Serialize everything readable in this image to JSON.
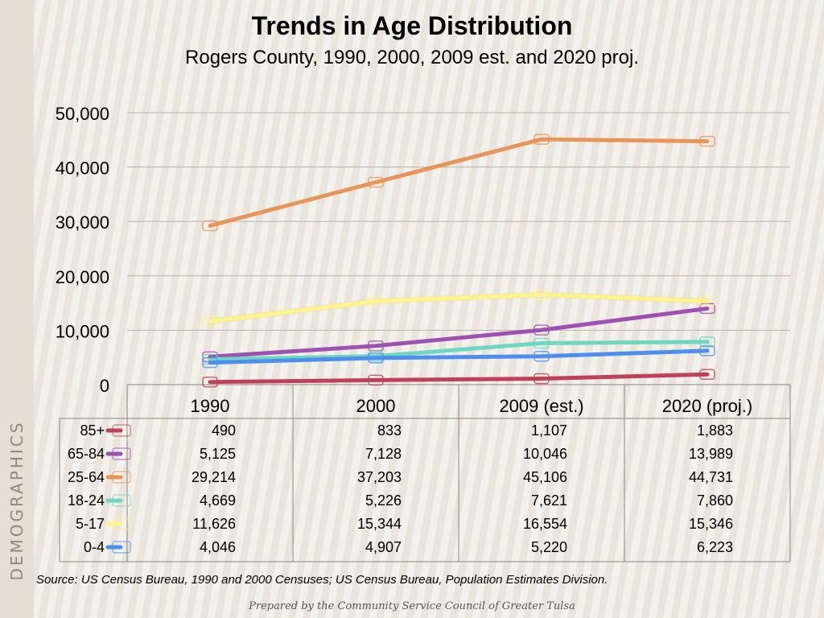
{
  "side_label": "DEMOGRAPHICS",
  "source": "Source:  US Census Bureau, 1990 and 2000 Censuses; US Census Bureau, Population Estimates Division.",
  "prepared": "Prepared by the Community Service Council of Greater Tulsa",
  "chart_data": {
    "type": "line",
    "title": "Trends in Age Distribution",
    "subtitle": "Rogers County, 1990, 2000, 2009 est. and 2020 proj.",
    "categories": [
      "1990",
      "2000",
      "2009 (est.)",
      "2020 (proj.)"
    ],
    "ylim": [
      0,
      50000
    ],
    "yticks": [
      "0",
      "10,000",
      "20,000",
      "30,000",
      "40,000",
      "50,000"
    ],
    "ytick_values": [
      0,
      10000,
      20000,
      30000,
      40000,
      50000
    ],
    "grid": true,
    "legend": "data table",
    "series": [
      {
        "name": "85+",
        "color": "#c0405a",
        "values": [
          490,
          833,
          1107,
          1883
        ],
        "labels": [
          "490",
          "833",
          "1,107",
          "1,883"
        ]
      },
      {
        "name": "65-84",
        "color": "#9b52b0",
        "values": [
          5125,
          7128,
          10046,
          13989
        ],
        "labels": [
          "5,125",
          "7,128",
          "10,046",
          "13,989"
        ]
      },
      {
        "name": "25-64",
        "color": "#e8955a",
        "values": [
          29214,
          37203,
          45106,
          44731
        ],
        "labels": [
          "29,214",
          "37,203",
          "45,106",
          "44,731"
        ]
      },
      {
        "name": "18-24",
        "color": "#6fd6c0",
        "values": [
          4669,
          5226,
          7621,
          7860
        ],
        "labels": [
          "4,669",
          "5,226",
          "7,621",
          "7,860"
        ]
      },
      {
        "name": "5-17",
        "color": "#fff48c",
        "values": [
          11626,
          15344,
          16554,
          15346
        ],
        "labels": [
          "11,626",
          "15,344",
          "16,554",
          "15,346"
        ]
      },
      {
        "name": "0-4",
        "color": "#4e8ef0",
        "values": [
          4046,
          4907,
          5220,
          6223
        ],
        "labels": [
          "4,046",
          "4,907",
          "5,220",
          "6,223"
        ]
      }
    ]
  }
}
